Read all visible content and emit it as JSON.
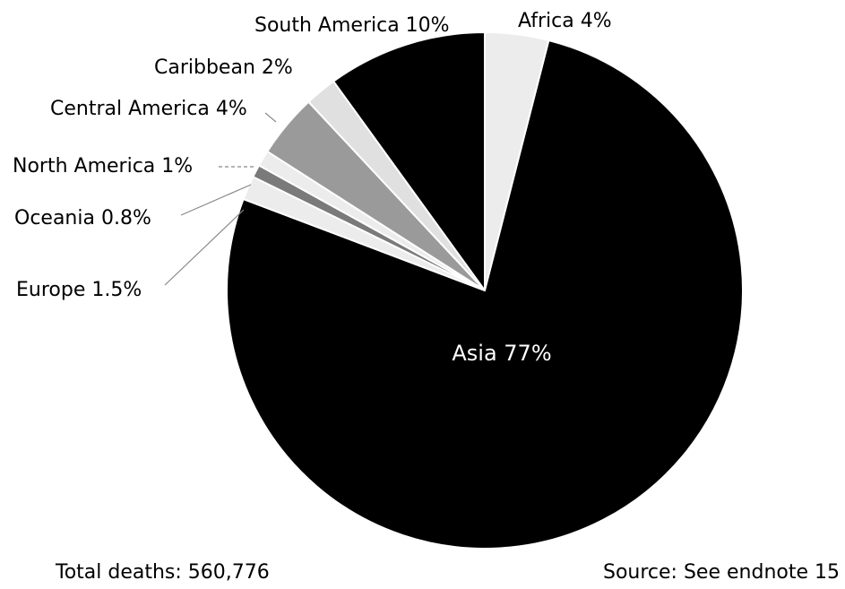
{
  "chart_data": {
    "type": "pie",
    "slices": [
      {
        "label": "Africa 4%",
        "value": 4,
        "color": "#ececec"
      },
      {
        "label": "Asia 77%",
        "value": 77,
        "color": "#000000"
      },
      {
        "label": "Europe 1.5%",
        "value": 1.5,
        "color": "#ececec"
      },
      {
        "label": "Oceania 0.8%",
        "value": 0.8,
        "color": "#7a7a7a"
      },
      {
        "label": "North America 1%",
        "value": 1,
        "color": "#ececec"
      },
      {
        "label": "Central America 4%",
        "value": 4,
        "color": "#9a9a9a"
      },
      {
        "label": "Caribbean 2%",
        "value": 2,
        "color": "#e0e0e0"
      },
      {
        "label": "South America 10%",
        "value": 10,
        "color": "#000000"
      }
    ],
    "total_label": "Total deaths: 560,776",
    "source_label": "Source: See endnote 15"
  }
}
